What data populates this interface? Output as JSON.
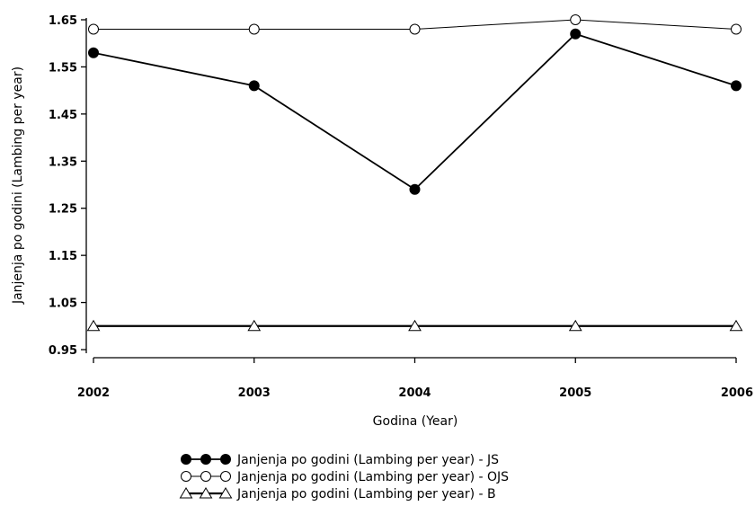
{
  "chart_data": {
    "type": "line",
    "title": "",
    "xlabel": "Godina (Year)",
    "ylabel": "Janjenja po godini (Lambing per year)",
    "x": [
      "2002",
      "2003",
      "2004",
      "2005",
      "2006"
    ],
    "ylim": [
      0.95,
      1.65
    ],
    "yticks": [
      "0.95",
      "1.05",
      "1.15",
      "1.25",
      "1.35",
      "1.45",
      "1.55",
      "1.65"
    ],
    "grid": false,
    "legend_position": "bottom",
    "series": [
      {
        "name": "Janjenja po godini (Lambing per year) - JS",
        "marker": "filled-circle",
        "values": [
          1.58,
          1.51,
          1.29,
          1.62,
          1.51
        ]
      },
      {
        "name": "Janjenja po godini (Lambing per year) - OJS",
        "marker": "open-circle",
        "values": [
          1.63,
          1.63,
          1.63,
          1.65,
          1.63
        ]
      },
      {
        "name": "Janjenja po godini (Lambing per year) - B",
        "marker": "open-triangle",
        "values": [
          1.0,
          1.0,
          1.0,
          1.0,
          1.0
        ]
      }
    ]
  }
}
